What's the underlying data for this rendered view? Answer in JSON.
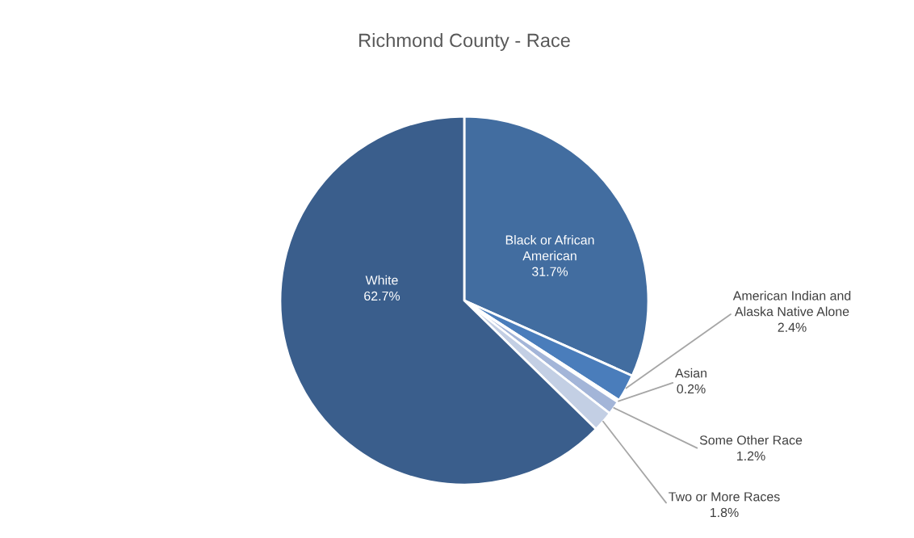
{
  "chart_data": {
    "type": "pie",
    "title": "Richmond County - Race",
    "categories": [
      "Black or African American",
      "American Indian and Alaska Native Alone",
      "Asian",
      "Some Other Race",
      "Two or More Races",
      "White"
    ],
    "values": [
      31.7,
      2.4,
      0.2,
      1.2,
      1.8,
      62.7
    ],
    "value_labels": [
      "31.7%",
      "2.4%",
      "0.2%",
      "1.2%",
      "1.8%",
      "62.7%"
    ],
    "colors": [
      "#426da0",
      "#4a7dbb",
      "#8aa4d0",
      "#a3b5d8",
      "#c3cfe4",
      "#3a5e8c"
    ],
    "legend": false
  }
}
